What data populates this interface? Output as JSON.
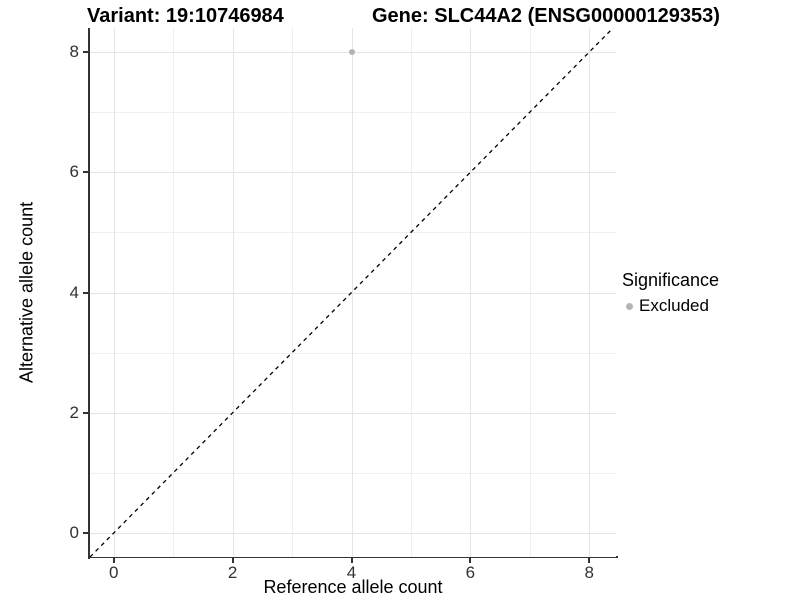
{
  "header": {
    "variant_title": "Variant: 19:10746984",
    "gene_title": "Gene: SLC44A2 (ENSG00000129353)"
  },
  "chart_data": {
    "type": "scatter",
    "title": "Variant: 19:10746984 / Gene: SLC44A2 (ENSG00000129353)",
    "xlabel": "Reference allele count",
    "ylabel": "Alternative allele count",
    "xlim": [
      -0.4,
      8.45
    ],
    "ylim": [
      -0.4,
      8.4
    ],
    "x_ticks": [
      0,
      2,
      4,
      6,
      8
    ],
    "x_minor_ticks": [
      1,
      3,
      5,
      7
    ],
    "y_ticks": [
      0,
      2,
      4,
      6,
      8
    ],
    "y_minor_ticks": [
      1,
      3,
      5,
      7
    ],
    "grid": "major+minor",
    "legend_position": "right",
    "legend_title": "Significance",
    "series": [
      {
        "name": "Excluded",
        "color": "#b4b4b4",
        "points": [
          {
            "x": 4,
            "y": 8
          }
        ]
      }
    ],
    "reference_line": {
      "kind": "identity y=x",
      "style": "dashed",
      "color": "#000000",
      "from": [
        -0.4,
        -0.4
      ],
      "to": [
        8.45,
        8.45
      ]
    }
  },
  "colors": {
    "background": "#ffffff",
    "grid_major": "#e5e5e5",
    "grid_minor": "#efefef",
    "axis_line": "#333333",
    "tick_text": "#333333"
  }
}
